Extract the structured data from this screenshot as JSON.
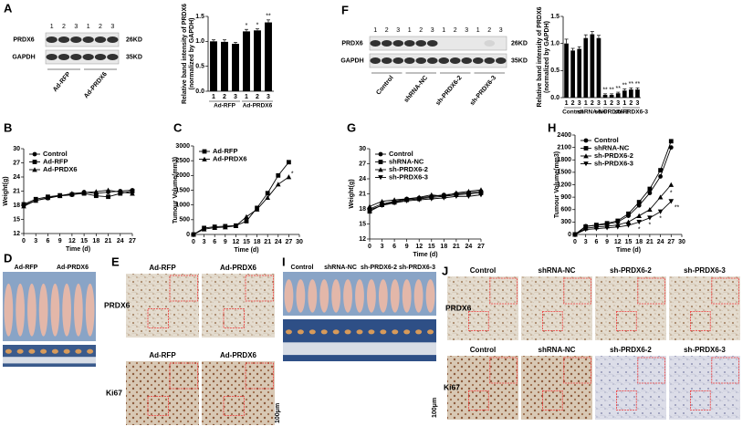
{
  "panels": [
    "A",
    "B",
    "C",
    "D",
    "E",
    "F",
    "G",
    "H",
    "I",
    "J"
  ],
  "blots": [
    {
      "rows": [
        "PRDX6",
        "GAPDH"
      ],
      "sizes": [
        "26KD",
        "35KD"
      ],
      "lanes": [
        "1",
        "2",
        "3",
        "1",
        "2",
        "3"
      ],
      "groups": [
        "Ad-RFP",
        "Ad-PRDX6"
      ]
    },
    {
      "rows": [
        "PRDX6",
        "GAPDH"
      ],
      "sizes": [
        "26KD",
        "35KD"
      ],
      "lanes": [
        "1",
        "2",
        "3",
        "1",
        "2",
        "3",
        "1",
        "2",
        "3",
        "1",
        "2",
        "3"
      ],
      "groups": [
        "Control",
        "shRNA-NC",
        "sh-PRDX6-2",
        "sh-PRDX6-3"
      ]
    }
  ],
  "photos": [
    {
      "groups": [
        "Ad-RFP",
        "Ad-PRDX6"
      ]
    },
    {
      "groups": [
        "Control",
        "shRNA-NC",
        "sh-PRDX6-2",
        "sh-PRDX6-3"
      ]
    }
  ],
  "ihc": [
    {
      "columns": [
        "Ad-RFP",
        "Ad-PRDX6"
      ],
      "rows": [
        "PRDX6",
        "Ki67"
      ],
      "scale": "100μm"
    },
    {
      "columns": [
        "Control",
        "shRNA-NC",
        "sh-PRDX6-2",
        "sh-PRDX6-3"
      ],
      "rows": [
        "PRDX6",
        "Ki67"
      ],
      "scale": "100μm"
    }
  ],
  "chart_data": [
    {
      "type": "bar",
      "ylabel": [
        "Relative band intensity of PRDX6",
        "(normalized by GAPDH)"
      ],
      "categories": [
        "1",
        "2",
        "3",
        "1",
        "2",
        "3"
      ],
      "groups": [
        "Ad-RFP",
        "Ad-PRDX6"
      ],
      "values": [
        1.0,
        0.99,
        0.95,
        1.2,
        1.22,
        1.38
      ],
      "errors": [
        0.03,
        0.04,
        0.03,
        0.04,
        0.03,
        0.05
      ],
      "significance": [
        null,
        null,
        null,
        "*",
        "*",
        "**"
      ],
      "color": "#000000",
      "ylim": [
        0,
        1.5
      ],
      "yticks": [
        {
          "value": 0,
          "label": "0.0"
        },
        0.5,
        {
          "value": 1,
          "label": "1.0"
        },
        1.5
      ]
    },
    {
      "type": "line",
      "ylabel": "Weight(g)",
      "xlabel": "Time (d)",
      "legend": "upper left",
      "x": [
        0,
        3,
        6,
        9,
        12,
        15,
        18,
        21,
        24,
        27
      ],
      "series": [
        {
          "name": "Control",
          "color": "#000000",
          "marker": "circle",
          "values": [
            18,
            19,
            19.5,
            20,
            20.2,
            20.8,
            20.5,
            20.8,
            21,
            21.2
          ]
        },
        {
          "name": "Ad-RFP",
          "color": "#000000",
          "marker": "square",
          "values": [
            18.2,
            19.3,
            19.8,
            20.1,
            20.3,
            20.5,
            20,
            19.8,
            20.5,
            21
          ]
        },
        {
          "name": "Ad-PRDX6",
          "color": "#000000",
          "marker": "triangle",
          "values": [
            17.8,
            19,
            19.6,
            20,
            20.5,
            20.7,
            20.9,
            21.2,
            20.8,
            20.5
          ]
        }
      ],
      "xlim": [
        0,
        27
      ],
      "xticks": [
        0,
        3,
        6,
        9,
        12,
        15,
        18,
        21,
        24,
        27
      ],
      "ylim": [
        12,
        30
      ],
      "yticks": [
        12,
        15,
        18,
        21,
        24,
        27,
        30
      ]
    },
    {
      "type": "line",
      "ylabel": "Tumour Volume(mm3)",
      "xlabel": "Time (d)",
      "legend": "upper left",
      "x": [
        0,
        3,
        6,
        9,
        12,
        15,
        18,
        21,
        24,
        27
      ],
      "series": [
        {
          "name": "Ad-RFP",
          "color": "#000000",
          "marker": "square",
          "values": [
            0,
            220,
            260,
            280,
            300,
            450,
            900,
            1400,
            2000,
            2450
          ]
        },
        {
          "name": "Ad-PRDX6",
          "color": "#000000",
          "marker": "triangle",
          "values": [
            0,
            180,
            230,
            250,
            290,
            600,
            850,
            1250,
            1700,
            1950
          ]
        }
      ],
      "annotations": [
        {
          "text": "*",
          "x": 28,
          "y": 2050
        }
      ],
      "xlim": [
        0,
        30
      ],
      "xticks": [
        0,
        3,
        6,
        9,
        12,
        15,
        18,
        21,
        24,
        27,
        30
      ],
      "ylim": [
        0,
        3000
      ],
      "yticks": [
        0,
        500,
        1000,
        1500,
        2000,
        2500,
        3000
      ]
    },
    {
      "type": "bar",
      "ylabel": [
        "Relative band intensity of PRDX6",
        "(normalized by GAPDH)"
      ],
      "categories": [
        "1",
        "2",
        "3",
        "1",
        "2",
        "3",
        "1",
        "2",
        "3",
        "1",
        "2",
        "3"
      ],
      "groups": [
        "Control",
        "shRNA-NC",
        "sh-PRDX6-2",
        "sh-PRDX6-3"
      ],
      "values": [
        1.0,
        0.87,
        0.9,
        1.1,
        1.17,
        1.1,
        0.05,
        0.05,
        0.08,
        0.13,
        0.15,
        0.15
      ],
      "errors": [
        0.08,
        0.04,
        0.04,
        0.06,
        0.05,
        0.05,
        0.02,
        0.02,
        0.02,
        0.03,
        0.03,
        0.03
      ],
      "significance": [
        null,
        null,
        null,
        null,
        null,
        null,
        "**",
        "**",
        "**",
        "**",
        "**",
        "**"
      ],
      "color": "#000000",
      "ylim": [
        0,
        1.5
      ],
      "yticks": [
        {
          "value": 0,
          "label": "0.0"
        },
        0.5,
        {
          "value": 1,
          "label": "1.0"
        },
        1.5
      ]
    },
    {
      "type": "line",
      "ylabel": "Weight(g)",
      "xlabel": "Time (d)",
      "legend": "upper left",
      "x": [
        0,
        3,
        6,
        9,
        12,
        15,
        18,
        21,
        24,
        27
      ],
      "series": [
        {
          "name": "Control",
          "color": "#000000",
          "marker": "circle",
          "values": [
            18,
            19,
            19.5,
            20,
            20.2,
            20.5,
            20.8,
            21,
            21.2,
            21.5
          ]
        },
        {
          "name": "shRNA-NC",
          "color": "#000000",
          "marker": "square",
          "values": [
            17.5,
            18.8,
            19.3,
            19.8,
            20,
            20.3,
            20.5,
            20.8,
            21,
            21.2
          ]
        },
        {
          "name": "sh-PRDX6-2",
          "color": "#000000",
          "marker": "triangle",
          "values": [
            18.5,
            19.5,
            19.8,
            20,
            20.3,
            20.8,
            20.5,
            21.2,
            21.5,
            21.8
          ]
        },
        {
          "name": "sh-PRDX6-3",
          "color": "#000000",
          "marker": "triangle-down",
          "values": [
            17.8,
            18.7,
            19.2,
            19.6,
            19.8,
            20,
            20.2,
            20.5,
            20.5,
            20.8
          ]
        }
      ],
      "xlim": [
        0,
        27
      ],
      "xticks": [
        0,
        3,
        6,
        9,
        12,
        15,
        18,
        21,
        24,
        27
      ],
      "ylim": [
        12,
        30
      ],
      "yticks": [
        12,
        15,
        18,
        21,
        24,
        27,
        30
      ]
    },
    {
      "type": "line",
      "ylabel": "Tumour Volume(mm3)",
      "xlabel": "Time (d)",
      "legend": "upper left",
      "x": [
        0,
        3,
        6,
        9,
        12,
        15,
        18,
        21,
        24,
        27
      ],
      "series": [
        {
          "name": "Control",
          "color": "#000000",
          "marker": "circle",
          "values": [
            0,
            200,
            220,
            250,
            300,
            450,
            700,
            1000,
            1400,
            2100
          ]
        },
        {
          "name": "shRNA-NC",
          "color": "#000000",
          "marker": "square",
          "values": [
            0,
            190,
            230,
            270,
            330,
            500,
            780,
            1100,
            1550,
            2250
          ]
        },
        {
          "name": "sh-PRDX6-2",
          "color": "#000000",
          "marker": "triangle",
          "values": [
            0,
            150,
            180,
            200,
            230,
            300,
            450,
            600,
            900,
            1200
          ]
        },
        {
          "name": "sh-PRDX6-3",
          "color": "#000000",
          "marker": "triangle-down",
          "values": [
            0,
            120,
            140,
            160,
            180,
            220,
            300,
            400,
            550,
            800
          ]
        }
      ],
      "annotations": [
        {
          "text": "*",
          "x": 18,
          "y": 120
        },
        {
          "text": "*",
          "x": 21,
          "y": 230
        },
        {
          "text": "*",
          "x": 24,
          "y": 380
        },
        {
          "text": "*",
          "x": 27,
          "y": 1000
        },
        {
          "text": "**",
          "x": 28.6,
          "y": 650
        }
      ],
      "xlim": [
        0,
        30
      ],
      "xticks": [
        0,
        3,
        6,
        9,
        12,
        15,
        18,
        21,
        24,
        27,
        30
      ],
      "ylim": [
        0,
        2400
      ],
      "yticks": [
        0,
        300,
        600,
        900,
        1200,
        1500,
        1800,
        2100,
        2400
      ]
    }
  ]
}
